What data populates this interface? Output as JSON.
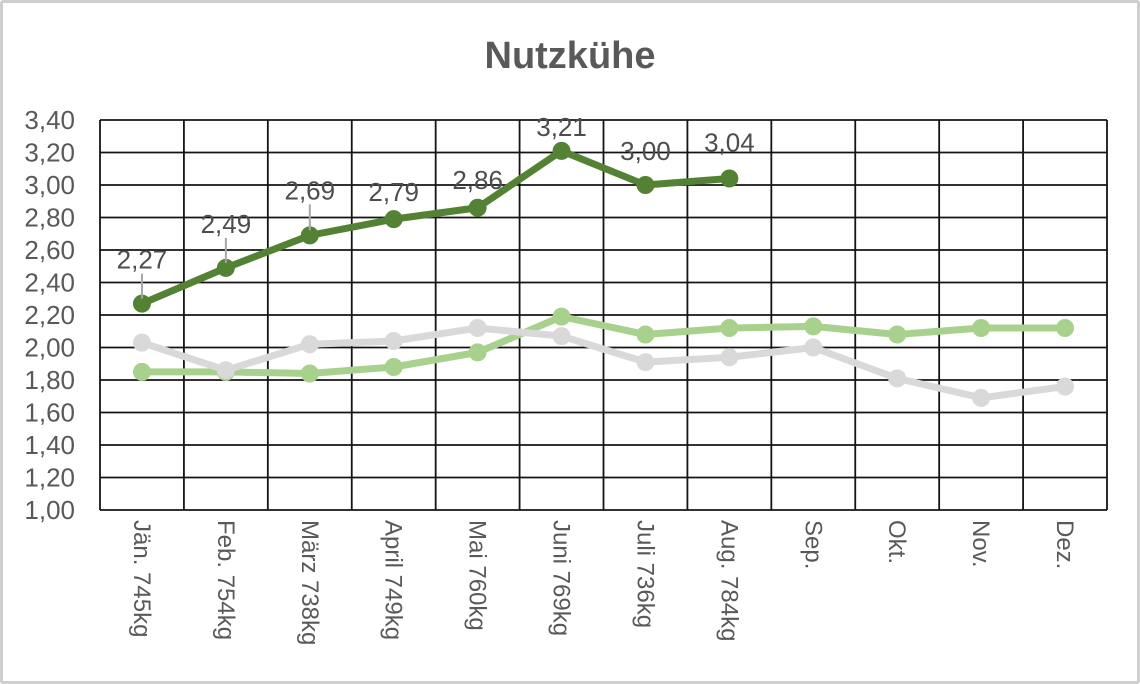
{
  "frame": {
    "background": "#ffffff",
    "border_color": "#cfcfcf"
  },
  "chart_data": {
    "type": "line",
    "title": "Nutzkühe",
    "title_color": "#595959",
    "xlabel": "",
    "ylabel": "",
    "ylim": [
      1.0,
      3.4
    ],
    "ytick_step": 0.2,
    "grid": true,
    "legend_position": "none",
    "axis_text_color": "#595959",
    "gridline_color": "#141414",
    "categories": [
      "Jän.  745kg",
      "Feb.  754kg",
      "März 738kg",
      "April  749kg",
      "Mai  760kg",
      "Juni  769kg",
      "Juli  736kg",
      "Aug.  784kg",
      "Sep.",
      "Okt.",
      "Nov.",
      "Dez."
    ],
    "ytick_labels": [
      "3,40",
      "3,20",
      "3,00",
      "2,80",
      "2,60",
      "2,40",
      "2,20",
      "2,00",
      "1,80",
      "1,60",
      "1,40",
      "1,20",
      "1,00"
    ],
    "series": [
      {
        "name": "light-green-line",
        "color": "#a9d18e",
        "values": [
          1.85,
          1.85,
          1.84,
          1.88,
          1.97,
          2.19,
          2.08,
          2.12,
          2.13,
          2.08,
          2.12,
          2.12
        ]
      },
      {
        "name": "gray-line",
        "color": "#d9d9d9",
        "values": [
          2.03,
          1.86,
          2.02,
          2.04,
          2.12,
          2.07,
          1.91,
          1.94,
          2.0,
          1.81,
          1.69,
          1.76
        ]
      },
      {
        "name": "dark-green-line",
        "color": "#548235",
        "values": [
          2.27,
          2.49,
          2.69,
          2.79,
          2.86,
          3.21,
          3.0,
          3.04,
          null,
          null,
          null,
          null
        ],
        "label_color": "#4d4d4d",
        "leader_color": "#a6a6a6",
        "point_labels": [
          {
            "text": "2,27",
            "offset": 44,
            "leader": true
          },
          {
            "text": "2,49",
            "offset": 44,
            "leader": true
          },
          {
            "text": "2,69",
            "offset": 45,
            "leader": true
          },
          {
            "text": "2,79",
            "offset": 27,
            "leader": false
          },
          {
            "text": "2,86",
            "offset": 28,
            "leader": false
          },
          {
            "text": "3,21",
            "offset": 24,
            "leader": false
          },
          {
            "text": "3,00",
            "offset": 34,
            "leader": false
          },
          {
            "text": "3,04",
            "offset": 36,
            "leader": false
          }
        ]
      }
    ]
  }
}
